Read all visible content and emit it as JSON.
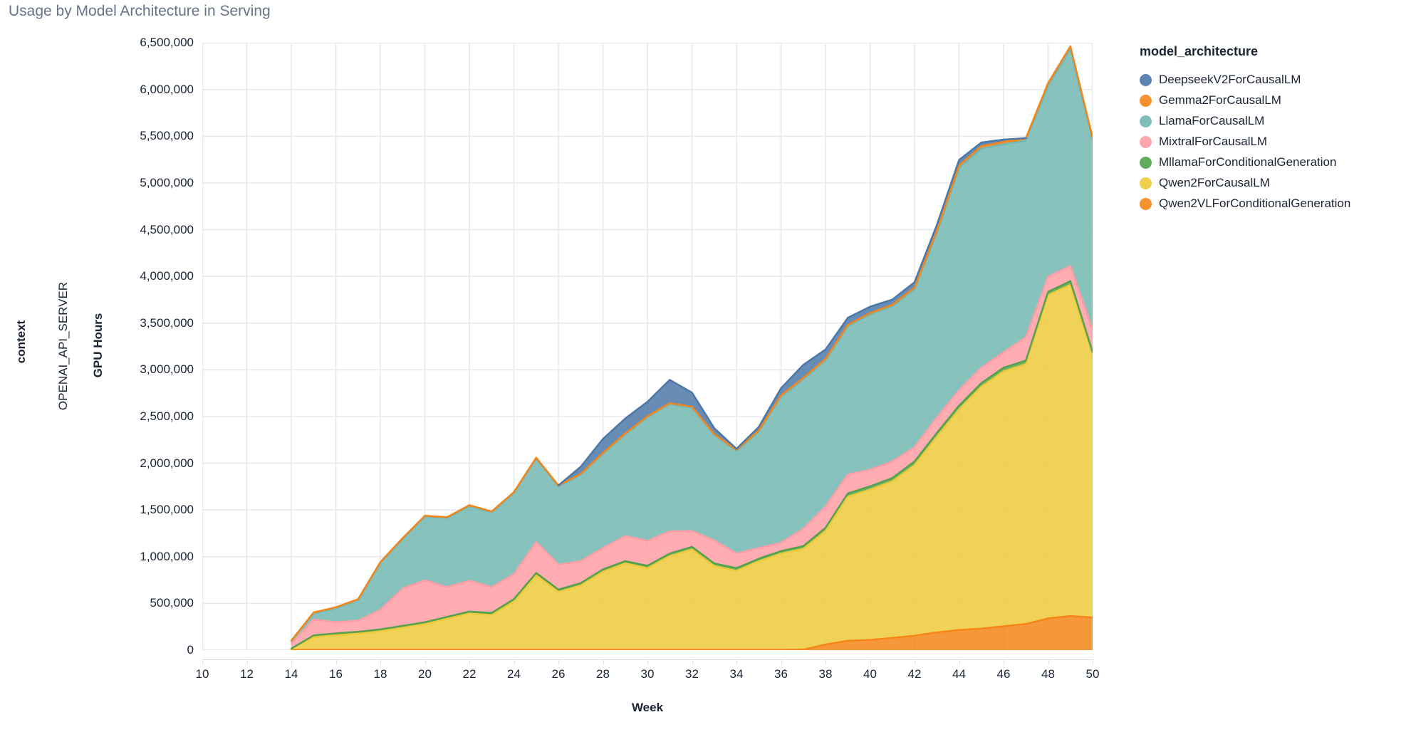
{
  "panel": {
    "title": "Usage by Model Architecture in Serving",
    "facet_field": "context",
    "facet_value": "OPENAI_API_SERVER",
    "y_axis_title": "GPU Hours",
    "x_axis_title": "Week"
  },
  "legend": {
    "title": "model_architecture",
    "items": [
      {
        "label": "DeepseekV2ForCausalLM",
        "color": "#4c78a8"
      },
      {
        "label": "Gemma2ForCausalLM",
        "color": "#f58518"
      },
      {
        "label": "LlamaForCausalLM",
        "color": "#72b7b2"
      },
      {
        "label": "MixtralForCausalLM",
        "color": "#ff9da6"
      },
      {
        "label": "MllamaForConditionalGeneration",
        "color": "#54a24b"
      },
      {
        "label": "Qwen2ForCausalLM",
        "color": "#eeca3b"
      },
      {
        "label": "Qwen2VLForConditionalGeneration",
        "color": "#f58518"
      }
    ]
  },
  "chart_data": {
    "type": "area",
    "stacked": true,
    "title": "Usage by Model Architecture in Serving",
    "xlabel": "Week",
    "ylabel": "GPU Hours",
    "xlim": [
      10,
      50
    ],
    "ylim": [
      0,
      6500000
    ],
    "grid": true,
    "legend_position": "right",
    "x": [
      14,
      15,
      16,
      17,
      18,
      19,
      20,
      21,
      22,
      23,
      24,
      25,
      26,
      27,
      28,
      29,
      30,
      31,
      32,
      33,
      34,
      35,
      36,
      37,
      38,
      39,
      40,
      41,
      42,
      43,
      44,
      45,
      46,
      47,
      48,
      49,
      50
    ],
    "xticks": [
      10,
      12,
      14,
      16,
      18,
      20,
      22,
      24,
      26,
      28,
      30,
      32,
      34,
      36,
      38,
      40,
      42,
      44,
      46,
      48,
      50
    ],
    "ytick_values": [
      0,
      500000,
      1000000,
      1500000,
      2000000,
      2500000,
      3000000,
      3500000,
      4000000,
      4500000,
      5000000,
      5500000,
      6000000,
      6500000
    ],
    "ytick_labels": [
      "0",
      "500,000",
      "1,000,000",
      "1,500,000",
      "2,000,000",
      "2,500,000",
      "3,000,000",
      "3,500,000",
      "4,000,000",
      "4,500,000",
      "5,000,000",
      "5,500,000",
      "6,000,000",
      "6,500,000"
    ],
    "series": [
      {
        "name": "Qwen2VLForConditionalGeneration",
        "color": "#f58518",
        "values": [
          2000,
          3000,
          3000,
          3000,
          3000,
          3000,
          3000,
          3000,
          3000,
          3000,
          3000,
          3000,
          3000,
          3000,
          3000,
          3000,
          3000,
          3000,
          3000,
          3000,
          3000,
          3000,
          3000,
          5000,
          60000,
          100000,
          110000,
          130000,
          155000,
          190000,
          215000,
          230000,
          255000,
          280000,
          340000,
          365000,
          350000
        ]
      },
      {
        "name": "Qwen2ForCausalLM",
        "color": "#eeca3b",
        "values": [
          10000,
          135000,
          158000,
          173000,
          199000,
          237000,
          275000,
          333000,
          389000,
          371000,
          518000,
          798000,
          620000,
          689000,
          836000,
          925000,
          875000,
          1005000,
          1075000,
          897000,
          846000,
          948000,
          1029000,
          1080000,
          1215000,
          1542000,
          1608000,
          1677000,
          1825000,
          2095000,
          2362000,
          2589000,
          2729000,
          2780000,
          3460000,
          3545000,
          2800000
        ]
      },
      {
        "name": "MllamaForConditionalGeneration",
        "color": "#54a24b",
        "values": [
          5000,
          20000,
          18000,
          20000,
          20000,
          20000,
          20000,
          20000,
          20000,
          25000,
          25000,
          25000,
          25000,
          25000,
          25000,
          25000,
          25000,
          26000,
          28000,
          28000,
          28000,
          28000,
          28000,
          28000,
          35000,
          35000,
          35000,
          35000,
          40000,
          40000,
          40000,
          40000,
          40000,
          40000,
          36000,
          40000,
          40000
        ]
      },
      {
        "name": "MixtralForCausalLM",
        "color": "#ff9da6",
        "values": [
          50000,
          170000,
          120000,
          120000,
          210000,
          400000,
          450000,
          318000,
          330000,
          275000,
          267000,
          330000,
          267000,
          236000,
          229000,
          267000,
          266000,
          237000,
          170000,
          246000,
          157000,
          114000,
          89000,
          185000,
          228000,
          203000,
          178000,
          178000,
          152000,
          165000,
          165000,
          165000,
          165000,
          250000,
          160000,
          163000,
          240000
        ]
      },
      {
        "name": "LlamaForCausalLM",
        "color": "#72b7b2",
        "values": [
          30000,
          65000,
          150000,
          220000,
          500000,
          530000,
          680000,
          740000,
          800000,
          800000,
          868000,
          894000,
          838000,
          924000,
          1008000,
          1089000,
          1324000,
          1362000,
          1319000,
          1129000,
          1099000,
          1248000,
          1563000,
          1600000,
          1565000,
          1586000,
          1661000,
          1661000,
          1693000,
          1980000,
          2380000,
          2345000,
          2226000,
          2105000,
          2044000,
          2321000,
          2026000
        ]
      },
      {
        "name": "Gemma2ForCausalLM",
        "color": "#f58518",
        "values": [
          5000,
          10000,
          10000,
          10000,
          10000,
          10000,
          10000,
          10000,
          10000,
          10000,
          10000,
          10000,
          10000,
          10000,
          10000,
          10000,
          10000,
          10000,
          10000,
          10000,
          10000,
          10000,
          15000,
          15000,
          15000,
          15000,
          15000,
          15000,
          15000,
          20000,
          25000,
          25000,
          25000,
          25000,
          30000,
          30000,
          30000
        ]
      },
      {
        "name": "DeepseekV2ForCausalLM",
        "color": "#4c78a8",
        "values": [
          null,
          null,
          null,
          null,
          null,
          null,
          null,
          null,
          null,
          null,
          null,
          null,
          0,
          76000,
          150000,
          160000,
          155000,
          250000,
          152000,
          63000,
          12000,
          38000,
          76000,
          140000,
          100000,
          76000,
          69000,
          56000,
          58000,
          60000,
          60000,
          40000,
          25000,
          0,
          null,
          null,
          null
        ]
      }
    ],
    "style": {
      "fill_opacity": 0.85,
      "stroke_width": 2.5,
      "gridline_color": "#e8e8f0",
      "border_color": "#e9e9f0",
      "background": "#ffffff"
    }
  }
}
